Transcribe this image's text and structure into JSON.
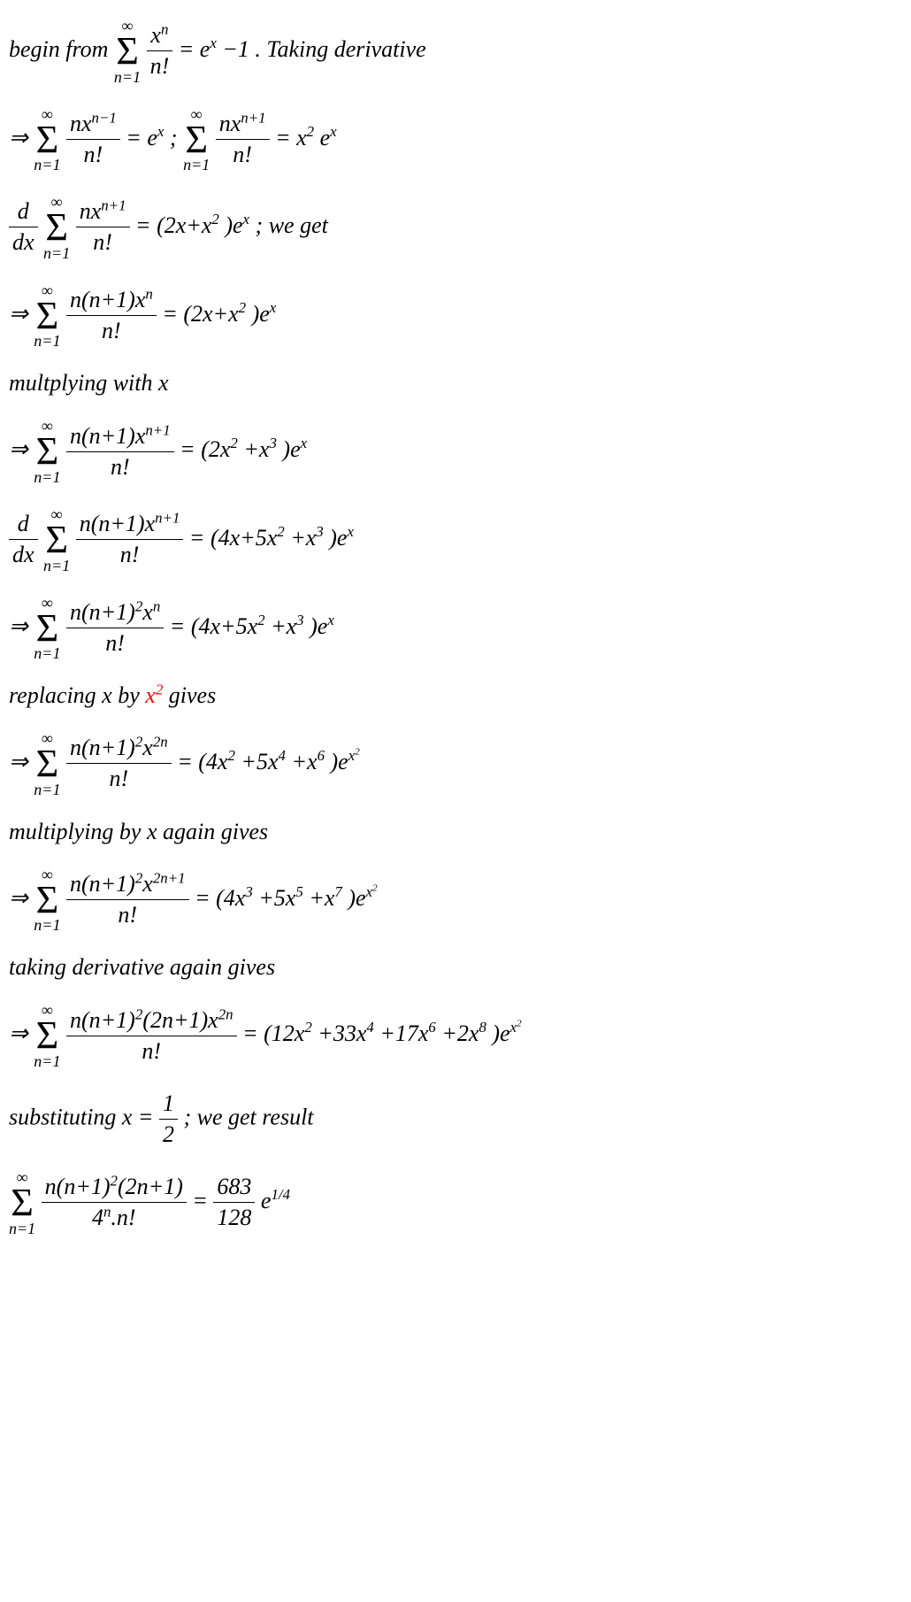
{
  "lines": [
    {
      "id": "l1",
      "segments": {
        "a": "begin from ",
        "sum_top": "∞",
        "sum_bot": "n=1",
        "frac_num_a": "x",
        "frac_num_sup": "n",
        "frac_den": "n!",
        "b": " = e",
        "b_sup": "x",
        "c": "−1 . Taking derivative"
      }
    },
    {
      "id": "l2",
      "segments": {
        "a": "⇒ ",
        "sum_top": "∞",
        "sum_bot": "n=1",
        "frac_num_a": "nx",
        "frac_num_sup": "n−1",
        "frac_den": "n!",
        "b": " = e",
        "b_sup": "x",
        "c": "  ;  ",
        "sum2_top": "∞",
        "sum2_bot": "n=1",
        "frac2_num_a": "nx",
        "frac2_num_sup": "n+1",
        "frac2_den": "n!",
        "d": " = x",
        "d_sup": "2",
        "e": "e",
        "e_sup": "x"
      }
    },
    {
      "id": "l3",
      "segments": {
        "dfrac_num": "d",
        "dfrac_den": "dx",
        "sum_top": "∞",
        "sum_bot": "n=1",
        "frac_num_a": "nx",
        "frac_num_sup": "n+1",
        "frac_den": "n!",
        "b": " = (2x+x",
        "b_sup": "2",
        "c": ")e",
        "c_sup": "x",
        "d": " ; we get"
      }
    },
    {
      "id": "l4",
      "segments": {
        "a": "⇒ ",
        "sum_top": "∞",
        "sum_bot": "n=1",
        "frac_num": "n(n+1)x",
        "frac_num_sup": "n",
        "frac_den": "n!",
        "b": " = (2x+x",
        "b_sup": "2",
        "c": ")e",
        "c_sup": "x"
      }
    },
    {
      "id": "l5",
      "segments": {
        "a": "multplying with x"
      }
    },
    {
      "id": "l6",
      "segments": {
        "a": "⇒ ",
        "sum_top": "∞",
        "sum_bot": "n=1",
        "frac_num": "n(n+1)x",
        "frac_num_sup": "n+1",
        "frac_den": "n!",
        "b": " = (2x",
        "b_sup": "2",
        "c": "+x",
        "c_sup": "3",
        "d": ")e",
        "d_sup": "x"
      }
    },
    {
      "id": "l7",
      "segments": {
        "dfrac_num": "d",
        "dfrac_den": "dx",
        "sum_top": "∞",
        "sum_bot": "n=1",
        "frac_num": "n(n+1)x",
        "frac_num_sup": "n+1",
        "frac_den": "n!",
        "b": " = (4x+5x",
        "b_sup": "2",
        "c": "+x",
        "c_sup": "3",
        "d": ")e",
        "d_sup": "x"
      }
    },
    {
      "id": "l8",
      "segments": {
        "a": "⇒ ",
        "sum_top": "∞",
        "sum_bot": "n=1",
        "frac_num": "n(n+1)",
        "frac_num_sup0": "2",
        "frac_num_b": "x",
        "frac_num_sup": "n",
        "frac_den": "n!",
        "b": " = (4x+5x",
        "b_sup": "2",
        "c": "+x",
        "c_sup": "3",
        "d": ")e",
        "d_sup": "x"
      }
    },
    {
      "id": "l9",
      "segments": {
        "a": "replacing x by ",
        "red_a": "x",
        "red_sup": "2",
        "b": "  gives"
      }
    },
    {
      "id": "l10",
      "segments": {
        "a": "⇒ ",
        "sum_top": "∞",
        "sum_bot": "n=1",
        "frac_num": "n(n+1)",
        "frac_num_sup0": "2",
        "frac_num_b": "x",
        "frac_num_sup": "2n",
        "frac_den": "n!",
        "b": " = (4x",
        "b_sup": "2",
        "c": "+5x",
        "c_sup": "4",
        "d": "+x",
        "d_sup": "6",
        "e": ")e",
        "e_sup_outer": "x",
        "e_sup_inner": "2"
      }
    },
    {
      "id": "l11",
      "segments": {
        "a": "multiplying by x again gives"
      }
    },
    {
      "id": "l12",
      "segments": {
        "a": "⇒",
        "sum_top": "∞",
        "sum_bot": "n=1",
        "frac_num": "n(n+1)",
        "frac_num_sup0": "2",
        "frac_num_b": "x",
        "frac_num_sup": "2n+1",
        "frac_den": "n!",
        "b": " = (4x",
        "b_sup": "3",
        "c": "+5x",
        "c_sup": "5",
        "d": "+x",
        "d_sup": "7",
        "e": ")e",
        "e_sup_outer": "x",
        "e_sup_inner": "2"
      }
    },
    {
      "id": "l13",
      "segments": {
        "a": "taking derivative again gives"
      }
    },
    {
      "id": "l14",
      "segments": {
        "a": "⇒",
        "sum_top": "∞",
        "sum_bot": "n=1",
        "frac_num": "n(n+1)",
        "frac_num_sup0": "2",
        "frac_num_b": "(2n+1)x",
        "frac_num_sup": "2n",
        "frac_den": "n!",
        "b": " = (12x",
        "b_sup": "2",
        "c": "+33x",
        "c_sup": "4",
        "d": "+17x",
        "d_sup": "6",
        "e": "+2x",
        "e_sup": "8",
        "f": ")e",
        "f_sup_outer": "x",
        "f_sup_inner": "2"
      }
    },
    {
      "id": "l15",
      "segments": {
        "a": "substituting x = ",
        "frac_num": "1",
        "frac_den": "2",
        "b": " ; we get result "
      }
    },
    {
      "id": "l16",
      "segments": {
        "sum_top": "∞",
        "sum_bot": "n=1",
        "frac_num": "n(n+1)",
        "frac_num_sup0": "2",
        "frac_num_b": "(2n+1)",
        "frac_den_a": "4",
        "frac_den_sup": "n",
        "frac_den_b": ".n!",
        "b": " = ",
        "frac2_num": "683",
        "frac2_den": "128",
        "c": " e",
        "c_sup": "1/4"
      }
    }
  ]
}
